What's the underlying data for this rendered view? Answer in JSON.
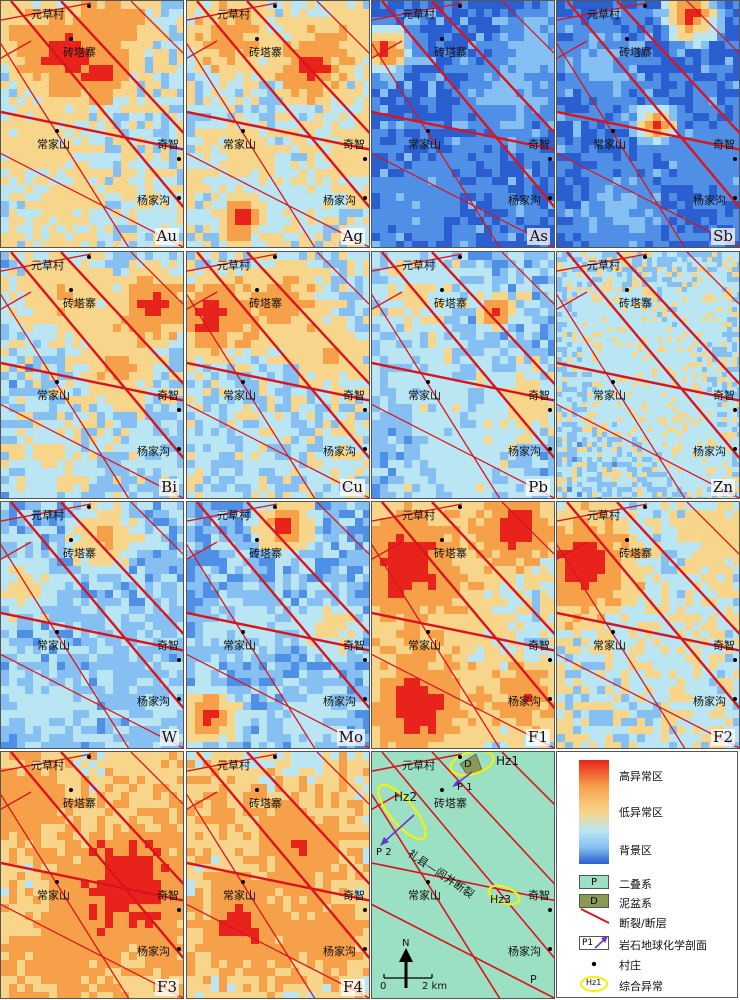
{
  "panels": [
    {
      "label": "Au"
    },
    {
      "label": "Ag"
    },
    {
      "label": "As"
    },
    {
      "label": "Sb"
    },
    {
      "label": "Bi"
    },
    {
      "label": "Cu"
    },
    {
      "label": "Pb"
    },
    {
      "label": "Zn"
    },
    {
      "label": "W"
    },
    {
      "label": "Mo"
    },
    {
      "label": "F1"
    },
    {
      "label": "F2"
    },
    {
      "label": "F3"
    },
    {
      "label": "F4"
    }
  ],
  "places": {
    "yuancaocun": "元草村",
    "zhuantazhai": "砖塔寨",
    "changjiashan": "常家山",
    "qizhi": "奇智",
    "yangjiagou": "杨家沟"
  },
  "geo_map": {
    "fault_name": "礼县—闾井断裂",
    "zones": [
      "Hz1",
      "Hz2",
      "Hz3"
    ],
    "profiles": [
      "P 1",
      "P 2"
    ],
    "unit_D": "D",
    "unit_P": "P",
    "north": "N",
    "scale_zero": "0",
    "scale_label": "2 km"
  },
  "legend": {
    "high": "高异常区",
    "low": "低异常区",
    "background": "背景区",
    "permian_symbol": "P",
    "permian": "二叠系",
    "devonian_symbol": "D",
    "devonian": "泥盆系",
    "fault": "断裂/断层",
    "profile_symbol": "P1",
    "profile": "岩石地球化学剖面",
    "village": "村庄",
    "zone_symbol": "Hz1",
    "zone": "综合异常"
  },
  "colors": {
    "high": "#e8231b",
    "orange": "#f6a04a",
    "low": "#f7d58a",
    "light": "#b9e6f2",
    "blue_light": "#86c0f2",
    "blue": "#4f8fe6",
    "blue_deep": "#2b5fd0",
    "fault": "#d9141e",
    "permian": "#9be0c3",
    "devonian": "#8a9a55",
    "zone_outline": "#f2f20a",
    "profile_arrow": "#6a35c8"
  }
}
